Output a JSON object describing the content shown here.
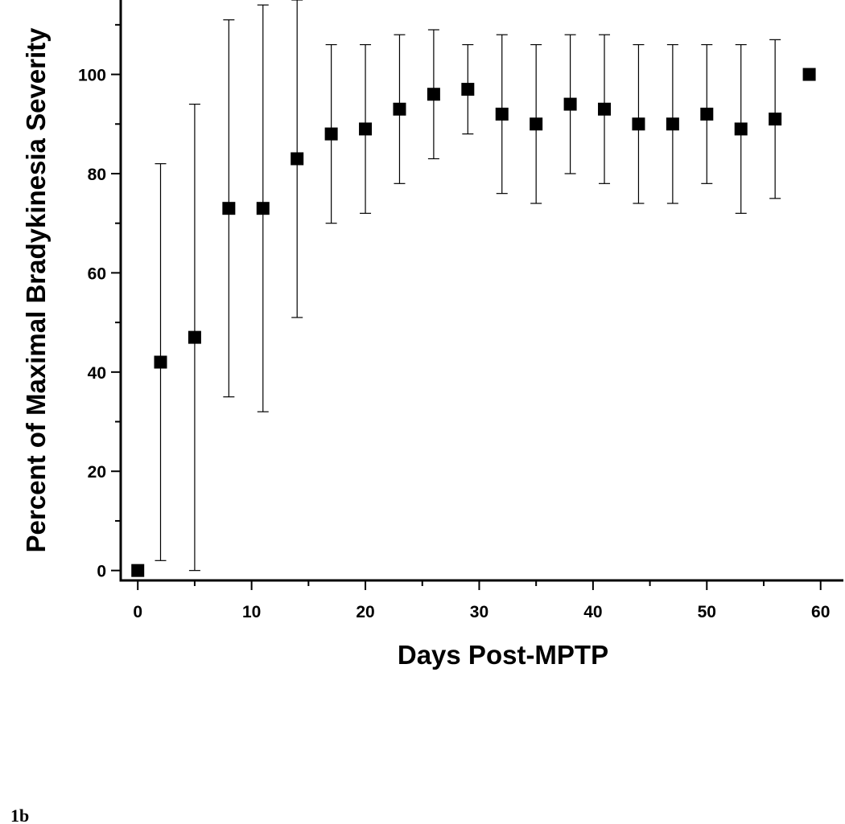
{
  "chart_data": {
    "type": "scatter",
    "xlabel": "Days Post-MPTP",
    "ylabel": "Percent of Maximal Bradykinesia Severity",
    "xlim": [
      -1.5,
      62
    ],
    "ylim": [
      -2,
      115
    ],
    "x_ticks": [
      0,
      10,
      20,
      30,
      40,
      50,
      60
    ],
    "y_ticks": [
      0,
      20,
      40,
      60,
      80,
      100
    ],
    "grid": false,
    "marker": "square",
    "marker_color": "#000000",
    "points": [
      {
        "x": 0,
        "y": 0,
        "err_low": null,
        "err_high": null
      },
      {
        "x": 2,
        "y": 42,
        "err_low": 2,
        "err_high": 82
      },
      {
        "x": 5,
        "y": 47,
        "err_low": 0,
        "err_high": 94
      },
      {
        "x": 8,
        "y": 73,
        "err_low": 35,
        "err_high": 111
      },
      {
        "x": 11,
        "y": 73,
        "err_low": 32,
        "err_high": 114
      },
      {
        "x": 14,
        "y": 83,
        "err_low": 51,
        "err_high": 115
      },
      {
        "x": 17,
        "y": 88,
        "err_low": 70,
        "err_high": 106
      },
      {
        "x": 20,
        "y": 89,
        "err_low": 72,
        "err_high": 106
      },
      {
        "x": 23,
        "y": 93,
        "err_low": 78,
        "err_high": 108
      },
      {
        "x": 26,
        "y": 96,
        "err_low": 83,
        "err_high": 109
      },
      {
        "x": 29,
        "y": 97,
        "err_low": 88,
        "err_high": 106
      },
      {
        "x": 32,
        "y": 92,
        "err_low": 76,
        "err_high": 108
      },
      {
        "x": 35,
        "y": 90,
        "err_low": 74,
        "err_high": 106
      },
      {
        "x": 38,
        "y": 94,
        "err_low": 80,
        "err_high": 108
      },
      {
        "x": 41,
        "y": 93,
        "err_low": 78,
        "err_high": 108
      },
      {
        "x": 44,
        "y": 90,
        "err_low": 74,
        "err_high": 106
      },
      {
        "x": 47,
        "y": 90,
        "err_low": 74,
        "err_high": 106
      },
      {
        "x": 50,
        "y": 92,
        "err_low": 78,
        "err_high": 106
      },
      {
        "x": 53,
        "y": 89,
        "err_low": 72,
        "err_high": 106
      },
      {
        "x": 56,
        "y": 91,
        "err_low": 75,
        "err_high": 107
      },
      {
        "x": 59,
        "y": 100,
        "err_low": null,
        "err_high": null
      }
    ]
  },
  "figure_label": "1b"
}
